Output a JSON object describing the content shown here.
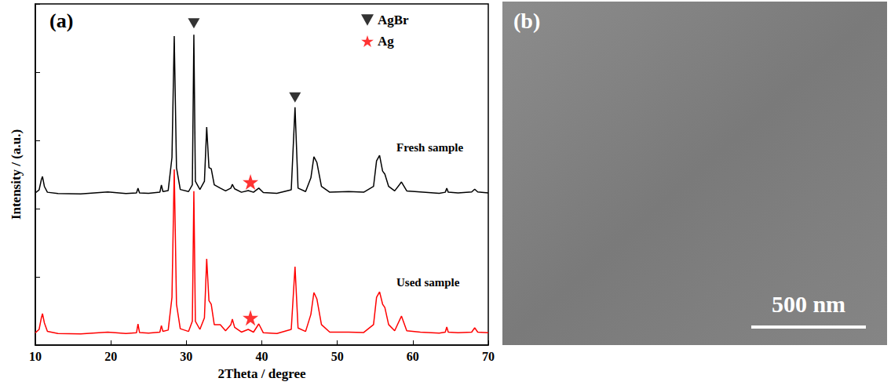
{
  "chart_data": {
    "type": "line",
    "title": "(a)",
    "x_label": "2Theta / degree",
    "y_label": "Intensity / (a.u.)",
    "x": [
      10,
      10.5,
      10.8,
      10.95,
      11.2,
      11.6,
      13,
      16,
      19.6,
      22,
      23.4,
      23.6,
      23.8,
      25,
      26.5,
      26.7,
      26.9,
      27.6,
      28.1,
      28.4,
      28.7,
      29.2,
      30.3,
      30.8,
      31.0,
      31.2,
      31.8,
      32.4,
      32.7,
      33.0,
      33.3,
      33.7,
      34.5,
      35.2,
      35.9,
      36.1,
      36.4,
      37.3,
      38.2,
      38.9,
      39.6,
      40.2,
      42,
      43.9,
      44.4,
      44.8,
      45.8,
      46.5,
      46.9,
      47.3,
      47.9,
      49,
      51.5,
      53.5,
      54.8,
      55.2,
      55.6,
      56.0,
      56.3,
      56.8,
      57.6,
      58.5,
      59.2,
      61,
      63.5,
      64.3,
      64.5,
      64.7,
      66,
      67.8,
      68.2,
      68.6,
      70
    ],
    "series": [
      {
        "name": "Fresh sample",
        "color": "#000000",
        "values": [
          44.6,
          45.5,
          48.5,
          49.4,
          46.5,
          44.8,
          44.4,
          44.3,
          44.9,
          44.4,
          44.6,
          46.0,
          44.6,
          44.5,
          44.8,
          46.9,
          45.0,
          45.3,
          55.0,
          90.6,
          52.0,
          45.6,
          45.0,
          47.0,
          91.0,
          48.0,
          45.6,
          48.0,
          63.9,
          52.0,
          51.7,
          47.0,
          46.0,
          45.2,
          46.0,
          47.1,
          45.8,
          44.8,
          45.3,
          44.8,
          46.0,
          44.7,
          44.5,
          45.5,
          69.7,
          46.0,
          45.0,
          49.0,
          55.2,
          53.5,
          46.5,
          44.8,
          45.0,
          44.8,
          46.5,
          54.0,
          55.6,
          51.0,
          50.1,
          46.5,
          45.2,
          47.8,
          45.2,
          44.9,
          44.5,
          44.8,
          46.0,
          44.8,
          44.6,
          44.9,
          45.7,
          44.9,
          44.6
        ]
      },
      {
        "name": "Used sample",
        "color": "#ff0000",
        "values": [
          3.6,
          4.6,
          8.0,
          9.2,
          6.5,
          4.0,
          3.4,
          3.3,
          3.8,
          3.4,
          3.6,
          6.2,
          3.7,
          3.5,
          3.8,
          5.7,
          4.0,
          4.4,
          14.0,
          51.5,
          12.0,
          4.8,
          4.0,
          7.0,
          45.1,
          7.0,
          4.6,
          8.0,
          25.3,
          13.0,
          12.0,
          6.0,
          6.0,
          4.2,
          6.0,
          7.6,
          5.2,
          3.8,
          4.6,
          3.8,
          6.2,
          3.6,
          3.4,
          4.6,
          23.0,
          5.0,
          4.0,
          9.0,
          15.4,
          13.5,
          6.0,
          3.8,
          3.8,
          3.7,
          6.0,
          14.0,
          15.6,
          12.0,
          11.0,
          6.0,
          4.2,
          8.5,
          4.2,
          3.8,
          3.5,
          3.8,
          5.3,
          3.8,
          3.6,
          3.8,
          5.1,
          3.8,
          3.6
        ]
      }
    ],
    "xlim": [
      10,
      70
    ],
    "xticks": [
      10,
      20,
      30,
      40,
      50,
      60,
      70
    ],
    "ylim": [
      0,
      100
    ],
    "yticks": [
      0,
      20,
      40,
      60,
      80,
      100
    ],
    "tick_labels": "x",
    "grid": false,
    "legend": "upper right",
    "annotations": [
      {
        "label": "AgBr",
        "marker": "triangle-down",
        "color": "#000000",
        "x": [
          31.0,
          44.4
        ],
        "y": [
          94.3,
          72.6
        ]
      },
      {
        "label": "Ag",
        "marker": "star",
        "color": "#ff0000",
        "x": [
          38.5,
          38.5
        ],
        "y": [
          47.8,
          8.0
        ]
      }
    ]
  },
  "image_panel": {
    "label": "(b)",
    "scale_bar": "500 nm"
  }
}
